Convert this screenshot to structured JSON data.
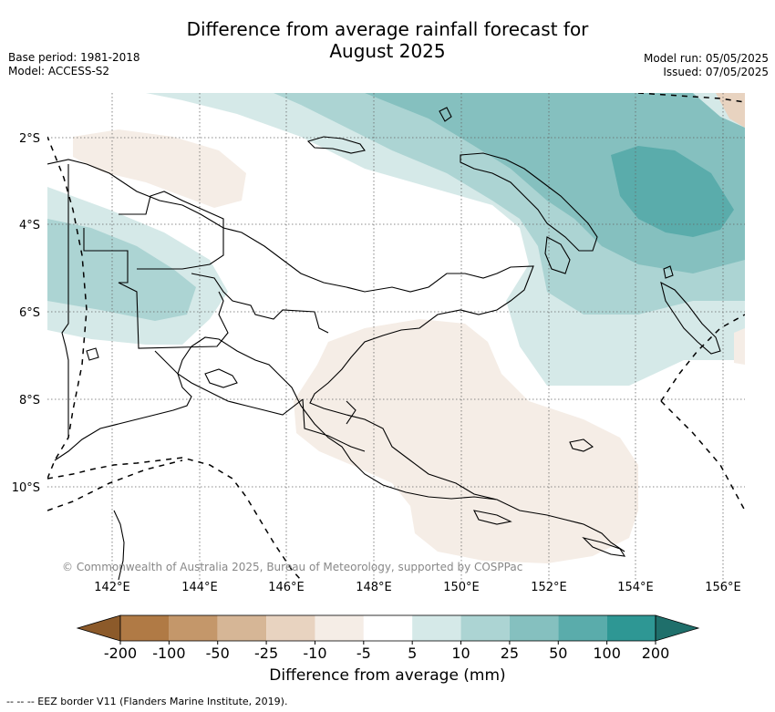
{
  "title_line1": "Difference from average rainfall forecast for",
  "title_line2": "August 2025",
  "meta_left": [
    "Base period: 1981-2018",
    "Model: ACCESS-S2"
  ],
  "meta_right": [
    "Model run: 05/05/2025",
    "Issued: 07/05/2025"
  ],
  "latitude_labels": [
    "2°S",
    "4°S",
    "6°S",
    "8°S",
    "10°S"
  ],
  "longitude_labels": [
    "142°E",
    "144°E",
    "146°E",
    "148°E",
    "150°E",
    "152°E",
    "154°E",
    "156°E"
  ],
  "copyright": "© Commonwealth of Australia 2025, Bureau of Meteorology, supported by COSPPac",
  "colorbar": {
    "label": "Difference from average (mm)",
    "ticks": [
      "-200",
      "-100",
      "-50",
      "-25",
      "-10",
      "-5",
      "5",
      "10",
      "25",
      "50",
      "100",
      "200"
    ],
    "colors": [
      "#8c5a2a",
      "#b07a45",
      "#c4976a",
      "#d6b696",
      "#e8d3c0",
      "#f5ede6",
      "#ffffff",
      "#d5e9e8",
      "#acd4d3",
      "#85c0bf",
      "#5aacab",
      "#2e9794",
      "#1f6f6b"
    ]
  },
  "footnote": "--  --  -- EEZ border V11 (Flanders Marine Institute, 2019)."
}
